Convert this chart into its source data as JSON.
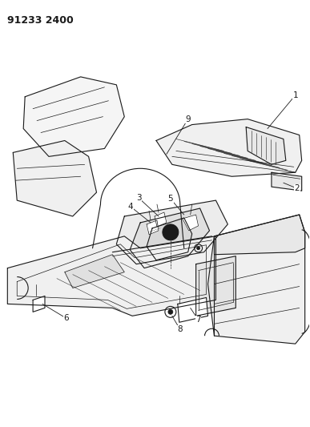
{
  "title_text": "91233 2400",
  "title_fontsize": 9,
  "title_fontweight": "bold",
  "background_color": "#ffffff",
  "line_color": "#1a1a1a",
  "figsize": [
    3.87,
    5.33
  ],
  "dpi": 100,
  "callout_fontsize": 7.5
}
